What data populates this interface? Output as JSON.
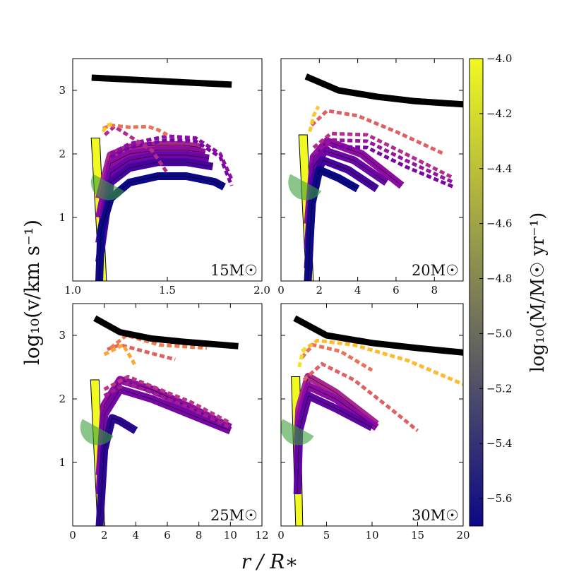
{
  "chart_data": [
    {
      "type": "line",
      "panel_label": "15M☉",
      "xlim": [
        1.0,
        2.0
      ],
      "ylim": [
        0,
        3.5
      ],
      "xticks": [
        1.0,
        1.5,
        2.0
      ],
      "xtick_labels": [
        "1.0",
        "1.5",
        "2.0"
      ],
      "yticks": [
        1,
        2,
        3
      ],
      "ytick_labels": [
        "1",
        "2",
        "3"
      ],
      "black_line": {
        "x": [
          1.1,
          1.84
        ],
        "y": [
          3.2,
          3.09
        ]
      },
      "yellow_bar": {
        "x_start": 1.16,
        "x_end": 1.12,
        "y_top": 2.25
      },
      "green_wedge": {
        "x": 1.19,
        "y": 1.55
      },
      "solid_series": [
        {
          "mdot_log": -5.7,
          "x": [
            1.14,
            1.15,
            1.2,
            1.3,
            1.45,
            1.6,
            1.75,
            1.8
          ],
          "y": [
            0.0,
            0.8,
            1.3,
            1.55,
            1.65,
            1.65,
            1.56,
            1.48
          ]
        },
        {
          "mdot_log": -5.5,
          "x": [
            1.14,
            1.2,
            1.3,
            1.45,
            1.6,
            1.74
          ],
          "y": [
            0.3,
            1.55,
            1.78,
            1.87,
            1.87,
            1.8
          ]
        },
        {
          "mdot_log": -5.35,
          "x": [
            1.14,
            1.2,
            1.3,
            1.45,
            1.6,
            1.72
          ],
          "y": [
            0.6,
            1.7,
            1.9,
            1.98,
            1.98,
            1.93
          ]
        },
        {
          "mdot_log": -5.2,
          "x": [
            1.14,
            1.2,
            1.3,
            1.45,
            1.6,
            1.7
          ],
          "y": [
            1.0,
            1.85,
            2.0,
            2.06,
            2.06,
            2.02
          ]
        },
        {
          "mdot_log": -5.05,
          "x": [
            1.14,
            1.2,
            1.3,
            1.45,
            1.58,
            1.68
          ],
          "y": [
            1.3,
            1.98,
            2.1,
            2.14,
            2.14,
            2.1
          ]
        }
      ],
      "dotted_series": [
        {
          "mdot_log": -5.3,
          "x": [
            1.2,
            1.3,
            1.5,
            1.65,
            1.78,
            1.84
          ],
          "y": [
            1.95,
            2.1,
            2.22,
            2.2,
            1.95,
            1.5
          ]
        },
        {
          "mdot_log": -5.2,
          "x": [
            1.2,
            1.3,
            1.5,
            1.65,
            1.78,
            1.84
          ],
          "y": [
            2.0,
            2.16,
            2.28,
            2.25,
            2.0,
            1.6
          ]
        },
        {
          "mdot_log": -5.0,
          "x": [
            1.17,
            1.22,
            1.3,
            1.42,
            1.5
          ],
          "y": [
            2.3,
            2.43,
            2.28,
            2.05,
            1.7
          ]
        },
        {
          "mdot_log": -4.6,
          "x": [
            1.16,
            1.2,
            1.3,
            1.4,
            1.45,
            1.5
          ],
          "y": [
            2.4,
            2.45,
            2.42,
            2.43,
            2.38,
            2.3
          ]
        },
        {
          "mdot_log": -4.2,
          "x": [
            1.16,
            1.18,
            1.22
          ],
          "y": [
            2.35,
            2.45,
            2.48
          ]
        }
      ]
    },
    {
      "type": "line",
      "panel_label": "20M☉",
      "xlim": [
        0,
        9.5
      ],
      "ylim": [
        0,
        3.5
      ],
      "xticks": [
        0,
        2,
        4,
        6,
        8
      ],
      "xtick_labels": [
        "0",
        "2",
        "4",
        "6",
        "8"
      ],
      "yticks": [
        1,
        2,
        3
      ],
      "ytick_labels": [],
      "black_line": {
        "x": [
          1.3,
          3,
          5,
          7,
          9.5
        ],
        "y": [
          3.22,
          3.0,
          2.9,
          2.83,
          2.78
        ]
      },
      "yellow_bar": {
        "x_start": 1.5,
        "x_end": 1.15,
        "y_top": 2.3
      },
      "green_wedge": {
        "x": 1.3,
        "y": 1.55
      },
      "solid_series": [
        {
          "mdot_log": -5.7,
          "x": [
            1.4,
            1.6,
            2.0,
            3.0,
            4.0
          ],
          "y": [
            0.0,
            1.2,
            1.75,
            1.62,
            1.45
          ]
        },
        {
          "mdot_log": -5.5,
          "x": [
            1.4,
            1.7,
            2.2,
            3.5,
            5.0
          ],
          "y": [
            0.2,
            1.6,
            1.9,
            1.75,
            1.45
          ]
        },
        {
          "mdot_log": -5.35,
          "x": [
            1.4,
            1.7,
            2.3,
            3.8,
            5.5
          ],
          "y": [
            0.5,
            1.8,
            2.05,
            1.9,
            1.55
          ]
        },
        {
          "mdot_log": -5.2,
          "x": [
            1.4,
            1.7,
            2.4,
            4.2,
            6.3
          ],
          "y": [
            0.9,
            1.95,
            2.2,
            2.0,
            1.5
          ]
        }
      ],
      "dotted_series": [
        {
          "mdot_log": -5.3,
          "x": [
            1.7,
            2.6,
            4.5,
            6.5,
            9.0
          ],
          "y": [
            1.9,
            2.12,
            2.1,
            1.8,
            1.48
          ]
        },
        {
          "mdot_log": -5.15,
          "x": [
            1.7,
            2.6,
            4.5,
            6.5,
            9.0
          ],
          "y": [
            2.0,
            2.22,
            2.2,
            1.9,
            1.55
          ]
        },
        {
          "mdot_log": -5.0,
          "x": [
            1.7,
            2.6,
            4.5,
            6.5,
            9.0
          ],
          "y": [
            2.1,
            2.32,
            2.3,
            2.0,
            1.62
          ]
        },
        {
          "mdot_log": -4.7,
          "x": [
            1.6,
            2.4,
            4.0,
            6.0,
            8.5
          ],
          "y": [
            2.45,
            2.68,
            2.6,
            2.35,
            2.0
          ]
        },
        {
          "mdot_log": -4.2,
          "x": [
            1.5,
            1.7,
            1.95
          ],
          "y": [
            2.35,
            2.6,
            2.75
          ]
        }
      ]
    },
    {
      "type": "line",
      "panel_label": "25M☉",
      "xlim": [
        0,
        12
      ],
      "ylim": [
        0,
        3.5
      ],
      "xticks": [
        0,
        2,
        4,
        6,
        8,
        10,
        12
      ],
      "xtick_labels": [
        "0",
        "2",
        "4",
        "6",
        "8",
        "10",
        "12"
      ],
      "yticks": [
        1,
        2,
        3
      ],
      "ytick_labels": [
        "1",
        "2",
        "3"
      ],
      "black_line": {
        "x": [
          1.4,
          3,
          5,
          7,
          10.5
        ],
        "y": [
          3.27,
          3.05,
          2.95,
          2.9,
          2.83
        ]
      },
      "yellow_bar": {
        "x_start": 1.8,
        "x_end": 1.4,
        "y_top": 2.3
      },
      "green_wedge": {
        "x": 1.6,
        "y": 1.55
      },
      "solid_series": [
        {
          "mdot_log": -5.6,
          "x": [
            1.7,
            2.0,
            2.5,
            3.0,
            4.0
          ],
          "y": [
            0.0,
            1.2,
            1.7,
            1.65,
            1.5
          ]
        },
        {
          "mdot_log": -5.3,
          "x": [
            1.7,
            2.0,
            3.0,
            5.0,
            8.0,
            10.0
          ],
          "y": [
            0.5,
            1.75,
            2.15,
            2.0,
            1.7,
            1.5
          ]
        },
        {
          "mdot_log": -5.2,
          "x": [
            1.7,
            2.0,
            3.0,
            5.0,
            8.0,
            10.0
          ],
          "y": [
            0.8,
            1.9,
            2.3,
            2.15,
            1.8,
            1.55
          ]
        }
      ],
      "dotted_series": [
        {
          "mdot_log": -5.1,
          "x": [
            2.0,
            3.5,
            5.0,
            7.5,
            10.0
          ],
          "y": [
            2.05,
            2.25,
            2.1,
            1.85,
            1.55
          ]
        },
        {
          "mdot_log": -4.95,
          "x": [
            2.0,
            3.5,
            5.0,
            7.5,
            10.0
          ],
          "y": [
            2.15,
            2.35,
            2.2,
            1.95,
            1.62
          ]
        },
        {
          "mdot_log": -4.7,
          "x": [
            2.2,
            3.0,
            4.5,
            6.5
          ],
          "y": [
            2.78,
            2.85,
            2.75,
            2.62
          ]
        },
        {
          "mdot_log": -4.55,
          "x": [
            2.4,
            3.4,
            5.5,
            8.5
          ],
          "y": [
            2.8,
            3.0,
            2.85,
            2.8
          ]
        },
        {
          "mdot_log": -4.35,
          "x": [
            2.0,
            3.2,
            3.8,
            4.0
          ],
          "y": [
            2.7,
            2.85,
            2.6,
            2.5
          ]
        }
      ]
    },
    {
      "type": "line",
      "panel_label": "30M☉",
      "xlim": [
        0,
        20
      ],
      "ylim": [
        0,
        3.5
      ],
      "xticks": [
        0,
        5,
        10,
        15,
        20
      ],
      "xtick_labels": [
        "0",
        "5",
        "10",
        "15",
        "20"
      ],
      "yticks": [
        1,
        2,
        3
      ],
      "ytick_labels": [],
      "black_line": {
        "x": [
          1.5,
          5,
          10,
          15,
          20
        ],
        "y": [
          3.27,
          3.0,
          2.88,
          2.8,
          2.73
        ]
      },
      "yellow_bar": {
        "x_start": 2.0,
        "x_end": 1.6,
        "y_top": 2.35
      },
      "green_wedge": {
        "x": 1.9,
        "y": 1.55
      },
      "solid_series": [
        {
          "mdot_log": -5.4,
          "x": [
            1.8,
            2.0,
            3.0,
            6.0,
            10.0
          ],
          "y": [
            0.5,
            1.5,
            2.05,
            1.85,
            1.55
          ]
        },
        {
          "mdot_log": -5.2,
          "x": [
            1.8,
            2.0,
            3.0,
            6.0,
            10.5
          ],
          "y": [
            1.0,
            1.7,
            2.2,
            2.0,
            1.55
          ]
        },
        {
          "mdot_log": -5.05,
          "x": [
            1.8,
            2.0,
            3.0,
            6.0,
            10.5
          ],
          "y": [
            1.3,
            1.85,
            2.35,
            2.1,
            1.6
          ]
        }
      ],
      "dotted_series": [
        {
          "mdot_log": -4.7,
          "x": [
            2.5,
            4.5,
            8.0,
            12.0,
            15.0
          ],
          "y": [
            2.3,
            2.55,
            2.3,
            1.85,
            1.5
          ]
        },
        {
          "mdot_log": -4.6,
          "x": [
            2.3,
            3.5,
            6.5,
            10.0
          ],
          "y": [
            2.65,
            2.85,
            2.75,
            2.45
          ]
        },
        {
          "mdot_log": -4.25,
          "x": [
            2.3,
            4.0,
            8.0,
            14.0,
            20.0
          ],
          "y": [
            2.75,
            2.92,
            2.85,
            2.6,
            2.23
          ]
        },
        {
          "mdot_log": -4.1,
          "x": [
            2.0,
            2.3,
            2.7
          ],
          "y": [
            2.5,
            2.7,
            2.82
          ]
        }
      ]
    }
  ],
  "colorbar": {
    "label": "log₁₀(Ṁ/M☉ yr⁻¹)",
    "min": -5.7,
    "max": -4.0,
    "colors": [
      "#0d0887",
      "#5302a3",
      "#8b0aa5",
      "#b83289",
      "#db5c68",
      "#f48849",
      "#febd2a",
      "#f0f921"
    ],
    "ticks": [
      -5.6,
      -5.4,
      -5.2,
      -5.0,
      -4.8,
      -4.6,
      -4.4,
      -4.2,
      -4.0
    ],
    "tick_labels": [
      "−5.6",
      "−5.4",
      "−5.2",
      "−5.0",
      "−4.8",
      "−4.6",
      "−4.4",
      "−4.2",
      "−4.0"
    ]
  },
  "xlabel": "r / R∗",
  "ylabel": "log₁₀(v/km s⁻¹)"
}
